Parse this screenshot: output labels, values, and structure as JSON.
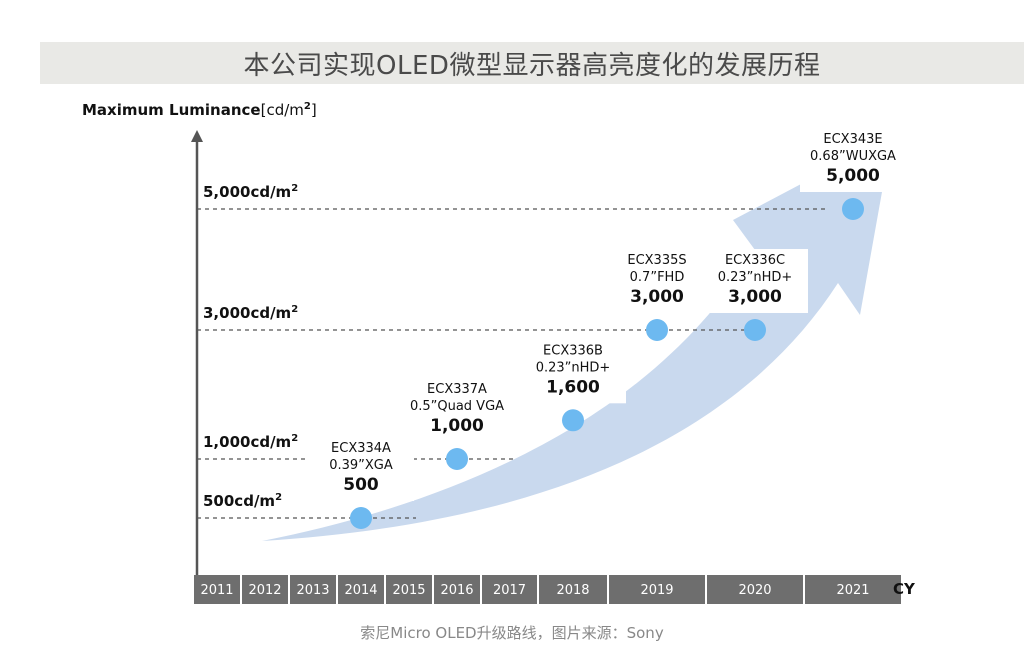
{
  "title": "本公司实现OLED微型显示器高亮度化的发展历程",
  "caption": "索尼Micro OLED升级路线，图片来源：Sony",
  "chart_data": {
    "type": "scatter",
    "ylabel_main": "Maximum Luminance",
    "ylabel_unit": "[cd/m",
    "ylabel_sup": "2",
    "ylabel_close": "]",
    "xlabel": "CY",
    "years": [
      "2011",
      "2012",
      "2013",
      "2014",
      "2015",
      "2016",
      "2017",
      "2018",
      "2019",
      "2020",
      "2021"
    ],
    "levels": [
      {
        "value": 500,
        "label": "500cd/m",
        "sup": "2"
      },
      {
        "value": 1000,
        "label": "1,000cd/m",
        "sup": "2"
      },
      {
        "value": 3000,
        "label": "3,000cd/m",
        "sup": "2"
      },
      {
        "value": 5000,
        "label": "5,000cd/m",
        "sup": "2"
      }
    ],
    "points": [
      {
        "year": "2014",
        "model": "ECX334A",
        "size": "0.39”XGA",
        "value": 500,
        "value_label": "500"
      },
      {
        "year": "2016",
        "model": "ECX337A",
        "size": "0.5”Quad VGA",
        "value": 1000,
        "value_label": "1,000"
      },
      {
        "year": "2018",
        "model": "ECX336B",
        "size": "0.23”nHD+",
        "value": 1600,
        "value_label": "1,600"
      },
      {
        "year": "2019",
        "model": "ECX335S",
        "size": "0.7”FHD",
        "value": 3000,
        "value_label": "3,000"
      },
      {
        "year": "2020",
        "model": "ECX336C",
        "size": "0.23”nHD+",
        "value": 3000,
        "value_label": "3,000"
      },
      {
        "year": "2021",
        "model": "ECX343E",
        "size": "0.68”WUXGA",
        "value": 5000,
        "value_label": "5,000"
      }
    ],
    "colors": {
      "point": "#6db9f0",
      "arrow": "#c9d9ee",
      "year_bar": "#6e6e6e",
      "gridline": "#555555"
    }
  }
}
